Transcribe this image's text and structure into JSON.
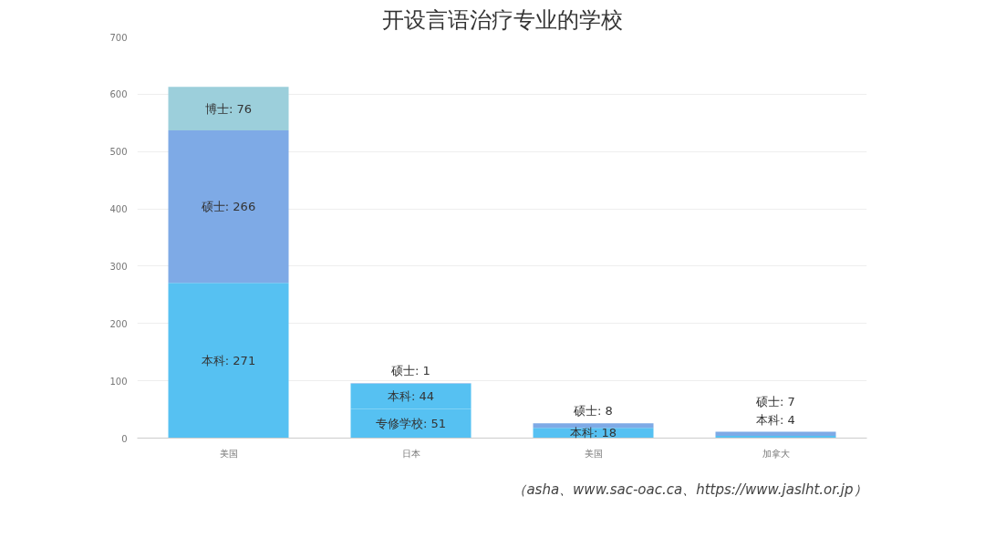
{
  "chart_data": {
    "type": "bar",
    "title": "开设言语治疗专业的学校",
    "categories": [
      "美国",
      "日本",
      "美国",
      "加拿大"
    ],
    "stacked": true,
    "series": [
      {
        "color": "#56c1f2",
        "values": [
          null,
          51,
          null,
          null
        ],
        "value_labels": [
          null,
          "专修学校: 51",
          null,
          null
        ]
      },
      {
        "color": "#56c1f2",
        "values": [
          271,
          44,
          18,
          4
        ],
        "value_labels": [
          "本科: 271",
          "本科: 44",
          "本科: 18",
          "本科: 4"
        ]
      },
      {
        "color": "#7eaae6",
        "values": [
          266,
          1,
          8,
          7
        ],
        "value_labels": [
          "硕士: 266",
          "硕士: 1",
          "硕士: 8",
          "硕士: 7"
        ]
      },
      {
        "color": "#9ccfdb",
        "values": [
          76,
          null,
          null,
          null
        ],
        "value_labels": [
          "博士: 76",
          null,
          null,
          null
        ]
      }
    ],
    "ylim": [
      0,
      700
    ],
    "yticks": [
      0,
      100,
      200,
      300,
      400,
      500,
      600,
      700
    ],
    "grid": "y",
    "annotations": [
      "（asha、www.sac-oac.ca、https://www.jaslht.or.jp）"
    ]
  }
}
